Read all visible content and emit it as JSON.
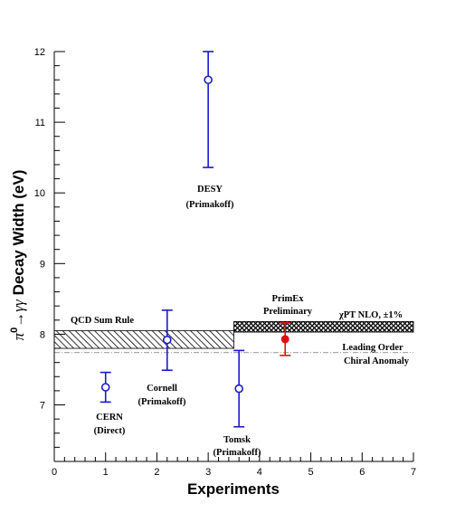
{
  "chart_data": {
    "type": "scatter",
    "xlabel": "Experiments",
    "ylabel_parts": {
      "pi": "π",
      "sup": "0",
      "decay": "→γγ",
      "rest": "Decay Width (eV)"
    },
    "xlim": [
      0,
      7
    ],
    "ylim": [
      6.2,
      12
    ],
    "x_ticks": [
      0,
      1,
      2,
      3,
      4,
      5,
      6,
      7
    ],
    "y_ticks": [
      7,
      8,
      9,
      10,
      11,
      12
    ],
    "grid": false,
    "series": [
      {
        "points": [
          {
            "x": 1.0,
            "y": 7.25,
            "yerr_low": 7.04,
            "yerr_high": 7.46,
            "label": "CERN",
            "sublabel": "(Direct)"
          },
          {
            "x": 2.2,
            "y": 7.92,
            "yerr_low": 7.49,
            "yerr_high": 8.34,
            "label": "Cornell",
            "sublabel": "(Primakoff)"
          },
          {
            "x": 3.0,
            "y": 11.6,
            "yerr_low": 10.36,
            "yerr_high": 12.0,
            "label": "DESY",
            "sublabel": "(Primakoff)"
          },
          {
            "x": 3.6,
            "y": 7.23,
            "yerr_low": 6.69,
            "yerr_high": 7.77,
            "label": "Tomsk",
            "sublabel": "(Primakoff)"
          }
        ],
        "color": "#1a1acc",
        "marker": "open-circle"
      },
      {
        "points": [
          {
            "x": 4.5,
            "y": 7.93,
            "yerr_low": 7.7,
            "yerr_high": 8.16,
            "label": "PrimEx",
            "sublabel": "Preliminary"
          }
        ],
        "color": "#e01010",
        "marker": "filled-circle"
      }
    ],
    "bands": [
      {
        "label": "QCD Sum Rule",
        "x_range": [
          0,
          3.5
        ],
        "y_range": [
          7.8,
          8.05
        ],
        "pattern": "diagonal-hatch"
      },
      {
        "label": "χPT NLO, ±1%",
        "x_range": [
          3.5,
          7
        ],
        "y_range": [
          8.03,
          8.18
        ],
        "pattern": "cross-hatch"
      }
    ],
    "lines": [
      {
        "label_line1": "Leading Order",
        "label_line2": "Chiral Anomaly",
        "y": 7.74,
        "x_range": [
          0,
          7
        ],
        "style": "dashed"
      }
    ]
  }
}
